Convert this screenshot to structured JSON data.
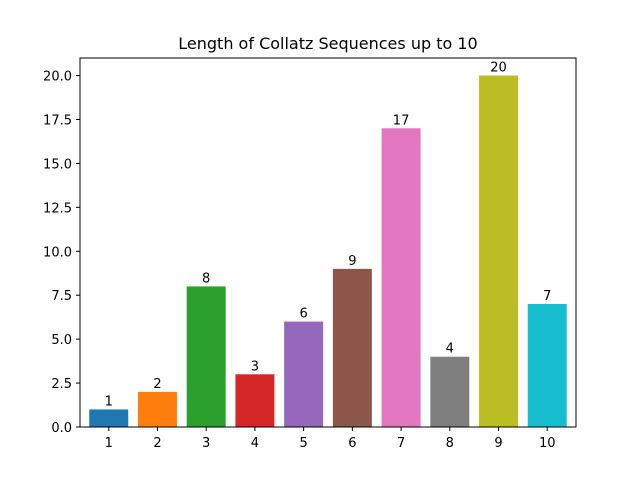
{
  "chart_data": {
    "type": "bar",
    "title": "Length of Collatz Sequences up to 10",
    "xlabel": "",
    "ylabel": "",
    "categories": [
      "1",
      "2",
      "3",
      "4",
      "5",
      "6",
      "7",
      "8",
      "9",
      "10"
    ],
    "values": [
      1,
      2,
      8,
      3,
      6,
      9,
      17,
      4,
      20,
      7
    ],
    "data_labels": [
      "1",
      "2",
      "8",
      "3",
      "6",
      "9",
      "17",
      "4",
      "20",
      "7"
    ],
    "colors": [
      "#1f77b4",
      "#ff7f0e",
      "#2ca02c",
      "#d62728",
      "#9467bd",
      "#8c564b",
      "#e377c2",
      "#7f7f7f",
      "#bcbd22",
      "#17becf"
    ],
    "ylim": [
      0,
      21
    ],
    "yticks": [
      0,
      2.5,
      5,
      7.5,
      10,
      12.5,
      15,
      17.5,
      20
    ],
    "ytick_labels": [
      "0.0",
      "2.5",
      "5.0",
      "7.5",
      "10.0",
      "12.5",
      "15.0",
      "17.5",
      "20.0"
    ],
    "grid": false,
    "legend": "none"
  }
}
